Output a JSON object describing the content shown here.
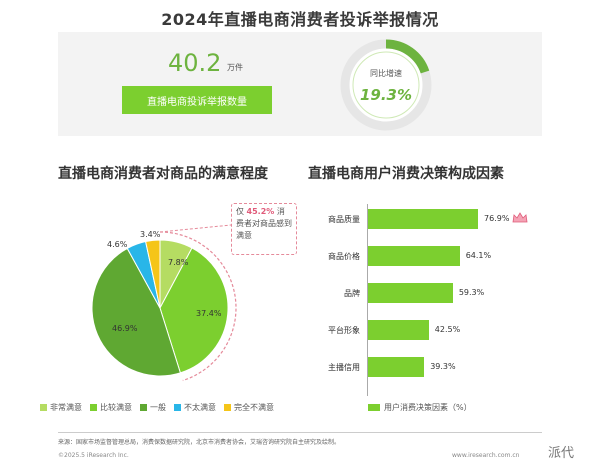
{
  "title": "2024年直播电商消费者投诉举报情况",
  "kpi": {
    "number": "40.2",
    "unit": "万件",
    "label": "直播电商投诉举报数量",
    "growth_label": "同比增速",
    "growth_value": "19.3%"
  },
  "left_title": "直播电商消费者对商品的满意程度",
  "right_title": "直播电商用户消费决策构成因素",
  "pie_note": {
    "prefix": "仅",
    "highlight": "45.2%",
    "rest": "消费者对商品感到满意"
  },
  "source": "来源：国家市场监督管理总局，消费保数据研究院，北京市消费者协会，艾瑞咨询研究院自主研究及绘制。",
  "copyright": "©2025.5 iResearch Inc.",
  "website": "www.iresearch.com.cn",
  "watermark": "派代",
  "colors": {
    "green": "#7ccf2f",
    "dark_green": "#5fa832",
    "light_green": "#b5dc62",
    "cyan": "#29b6e8",
    "yellow": "#f5c518",
    "pink": "#e05b7a"
  },
  "chart_data": [
    {
      "type": "pie",
      "title": "直播电商消费者对商品的满意程度",
      "labels": [
        "非常满意",
        "比较满意",
        "一般",
        "不太满意",
        "完全不满意"
      ],
      "values": [
        7.8,
        37.4,
        46.9,
        4.6,
        3.4
      ],
      "value_labels": [
        "7.8%",
        "37.4%",
        "46.9%",
        "4.6%",
        "3.4%"
      ],
      "colors": [
        "#b5dc62",
        "#7ccf2f",
        "#5fa832",
        "#29b6e8",
        "#f5c518"
      ],
      "legend_position": "bottom"
    },
    {
      "type": "bar",
      "title": "直播电商用户消费决策构成因素",
      "categories": [
        "商品质量",
        "商品价格",
        "品牌",
        "平台形象",
        "主播信用"
      ],
      "values": [
        76.9,
        64.1,
        59.3,
        42.5,
        39.3
      ],
      "value_labels": [
        "76.9%",
        "64.1%",
        "59.3%",
        "42.5%",
        "39.3%"
      ],
      "series_name": "用户消费决策因素（%）",
      "xlim": [
        0,
        100
      ],
      "legend_position": "bottom"
    }
  ]
}
